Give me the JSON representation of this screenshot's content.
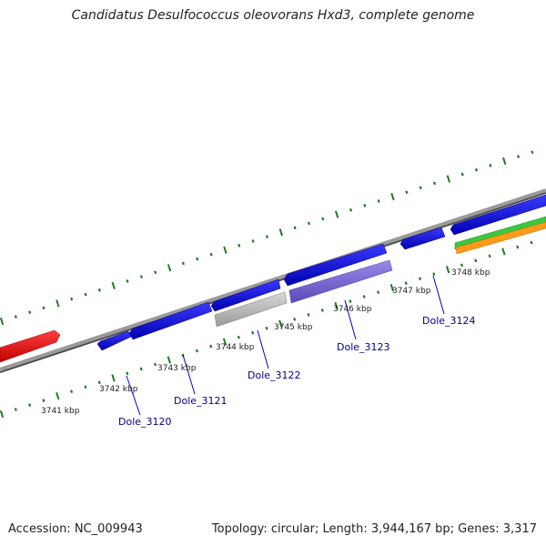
{
  "title": "Candidatus Desulfococcus oleovorans Hxd3, complete genome",
  "footer": {
    "accession": "Accession: NC_009943",
    "stats": "Topology: circular; Length: 3,944,167 bp; Genes: 3,317"
  },
  "kbp_labels": [
    "3741 kbp",
    "3742 kbp",
    "3743 kbp",
    "3744 kbp",
    "3745 kbp",
    "3746 kbp",
    "3747 kbp",
    "3748 kbp"
  ],
  "gene_labels": [
    "Dole_3120",
    "Dole_3121",
    "Dole_3122",
    "Dole_3123",
    "Dole_3124"
  ],
  "colors": {
    "backbone": "#8c8c8c",
    "ticks": "#1e7d1e",
    "gene_red": "#ff1a1a",
    "gene_blue": "#1414e6",
    "gene_grey": "#bdbdbd",
    "gene_purple": "#7a6ad6",
    "gene_green": "#3cc83c",
    "gene_orange": "#ff9a1a",
    "label": "#00008b"
  }
}
